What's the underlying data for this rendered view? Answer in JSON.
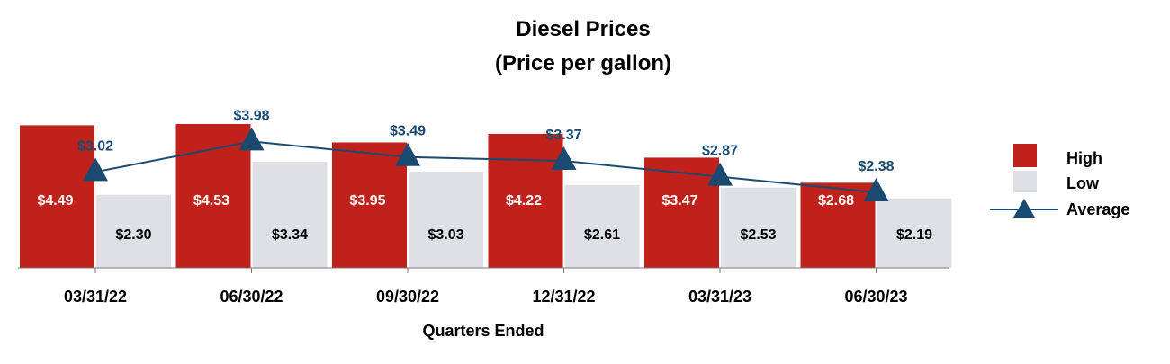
{
  "chart_data": {
    "type": "bar",
    "title": "Diesel Prices",
    "subtitle": "(Price per gallon)",
    "xlabel": "Quarters Ended",
    "ylabel": "",
    "ylim": [
      0,
      5
    ],
    "grid": false,
    "legend_position": "right",
    "categories": [
      "03/31/22",
      "06/30/22",
      "09/30/22",
      "12/31/22",
      "03/31/23",
      "06/30/23"
    ],
    "series": [
      {
        "name": "High",
        "kind": "bar",
        "color": "#c0211a",
        "label_color": "#ffffff",
        "values": [
          4.49,
          4.53,
          3.95,
          4.22,
          3.47,
          2.68
        ],
        "labels": [
          "$4.49",
          "$4.53",
          "$3.95",
          "$4.22",
          "$3.47",
          "$2.68"
        ]
      },
      {
        "name": "Low",
        "kind": "bar",
        "color": "#dfe0e6",
        "label_color": "#000000",
        "values": [
          2.3,
          3.34,
          3.03,
          2.61,
          2.53,
          2.19
        ],
        "labels": [
          "$2.30",
          "$3.34",
          "$3.03",
          "$2.61",
          "$2.53",
          "$2.19"
        ]
      },
      {
        "name": "Average",
        "kind": "line",
        "color": "#1a4a70",
        "label_color": "#1a4a70",
        "values": [
          3.02,
          3.98,
          3.49,
          3.37,
          2.87,
          2.38
        ],
        "labels": [
          "$3.02",
          "$3.98",
          "$3.49",
          "$3.37",
          "$2.87",
          "$2.38"
        ]
      }
    ]
  }
}
